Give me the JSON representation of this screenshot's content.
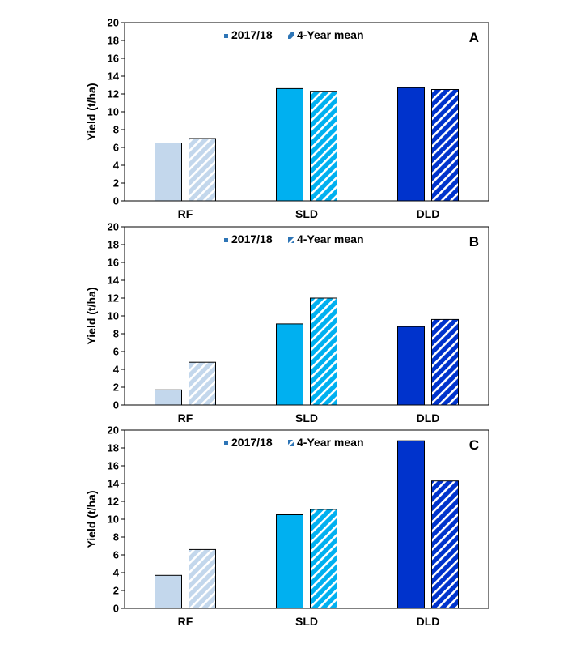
{
  "chart_data": [
    {
      "type": "bar",
      "panel_label": "A",
      "categories": [
        "RF",
        "SLD",
        "DLD"
      ],
      "series": [
        {
          "name": "2017/18",
          "values": [
            6.5,
            12.6,
            12.7
          ]
        },
        {
          "name": "4-Year mean",
          "values": [
            7.0,
            12.3,
            12.5
          ]
        }
      ],
      "ylabel": "Yield (t/ha)",
      "ylim": [
        0,
        20
      ],
      "yticks": [
        0,
        2,
        4,
        6,
        8,
        10,
        12,
        14,
        16,
        18,
        20
      ],
      "legend": "top-center",
      "grid": false
    },
    {
      "type": "bar",
      "panel_label": "B",
      "categories": [
        "RF",
        "SLD",
        "DLD"
      ],
      "series": [
        {
          "name": "2017/18",
          "values": [
            1.7,
            9.1,
            8.8
          ]
        },
        {
          "name": "4-Year mean",
          "values": [
            4.8,
            12.0,
            9.6
          ]
        }
      ],
      "ylabel": "Yield (t/ha)",
      "ylim": [
        0,
        20
      ],
      "yticks": [
        0,
        2,
        4,
        6,
        8,
        10,
        12,
        14,
        16,
        18,
        20
      ],
      "legend": "top-center",
      "grid": false
    },
    {
      "type": "bar",
      "panel_label": "C",
      "categories": [
        "RF",
        "SLD",
        "DLD"
      ],
      "series": [
        {
          "name": "2017/18",
          "values": [
            3.7,
            10.5,
            18.8
          ]
        },
        {
          "name": "4-Year mean",
          "values": [
            6.6,
            11.1,
            14.3
          ]
        }
      ],
      "ylabel": "Yield (t/ha)",
      "ylim": [
        0,
        20
      ],
      "yticks": [
        0,
        2,
        4,
        6,
        8,
        10,
        12,
        14,
        16,
        18,
        20
      ],
      "legend": "top-center",
      "grid": false
    }
  ],
  "colors": {
    "category_fill": [
      "#c3d7ec",
      "#00b0f0",
      "#0033cc"
    ],
    "hatch_line": "#ffffff",
    "outline": "#000000",
    "legend_solid": "#2e75b6",
    "legend_hatch": "#2e75b6"
  }
}
